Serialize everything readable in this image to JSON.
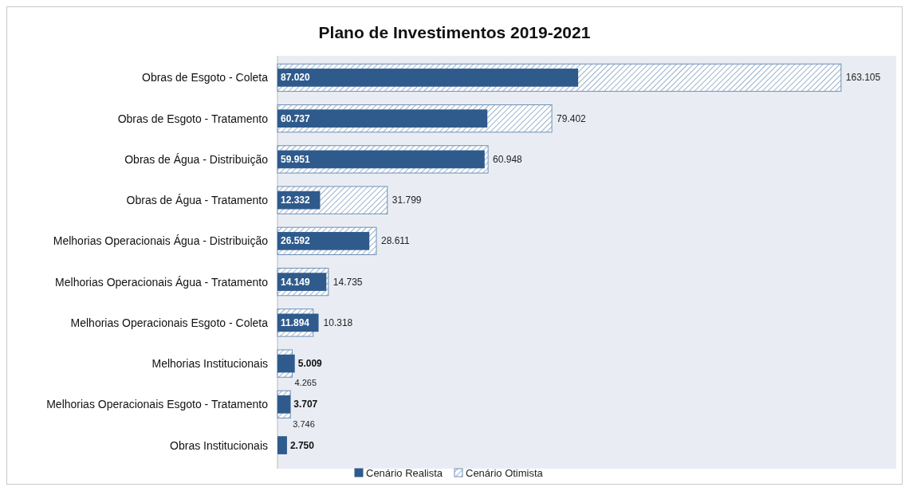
{
  "chart_data": {
    "type": "bar",
    "orientation": "horizontal",
    "title": "Plano de Investimentos 2019-2021",
    "categories": [
      "Obras de Esgoto - Coleta",
      "Obras de Esgoto - Tratamento",
      "Obras de Água - Distribuição",
      "Obras de Água - Tratamento",
      "Melhorias Operacionais Água - Distribuição",
      "Melhorias Operacionais Água - Tratamento",
      "Melhorias Operacionais Esgoto - Coleta",
      "Melhorias Institucionais",
      "Melhorias Operacionais Esgoto - Tratamento",
      "Obras Institucionais"
    ],
    "series": [
      {
        "name": "Cenário Realista",
        "color": "#2f5a8c",
        "values": [
          87020,
          60737,
          59951,
          12332,
          26592,
          14149,
          11894,
          5009,
          3707,
          2750
        ],
        "value_labels": [
          "87.020",
          "60.737",
          "59.951",
          "12.332",
          "26.592",
          "14.149",
          "11.894",
          "5.009",
          "3.707",
          "2.750"
        ]
      },
      {
        "name": "Cenário Otimista",
        "color": "#6f8fb5",
        "values": [
          163105,
          79402,
          60948,
          31799,
          28611,
          14735,
          10318,
          4265,
          3746,
          null
        ],
        "value_labels": [
          "163.105",
          "79.402",
          "60.948",
          "31.799",
          "28.611",
          "14.735",
          "10.318",
          "4.265",
          "3.746",
          null
        ]
      }
    ],
    "xlim": [
      0,
      180000
    ],
    "legend": "bottom"
  }
}
